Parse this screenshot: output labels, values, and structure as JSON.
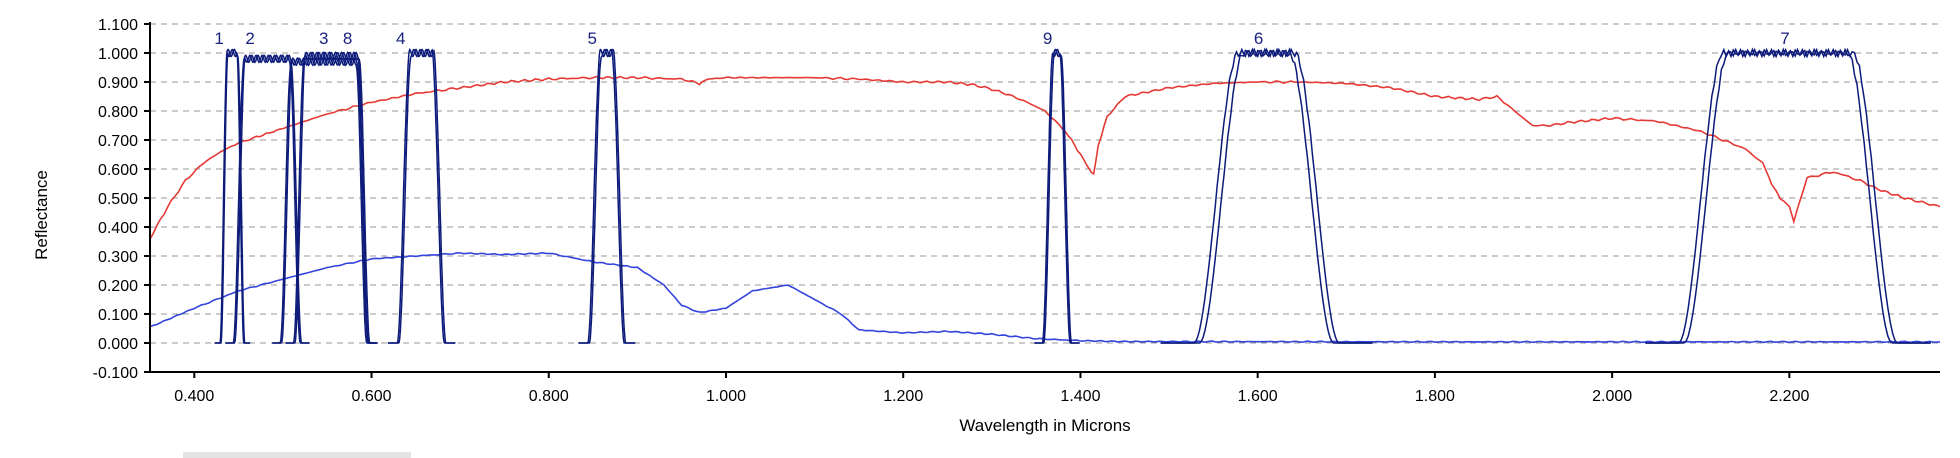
{
  "chart_data": {
    "type": "line",
    "xlabel": "Wavelength in Microns",
    "ylabel": "Reflectance",
    "xlim": [
      0.35,
      2.37
    ],
    "ylim": [
      -0.1,
      1.1
    ],
    "x_ticks": [
      0.4,
      0.6,
      0.8,
      1.0,
      1.2,
      1.4,
      1.6,
      1.8,
      2.0,
      2.2
    ],
    "x_tick_labels": [
      "0.400",
      "0.600",
      "0.800",
      "1.000",
      "1.200",
      "1.400",
      "1.600",
      "1.800",
      "2.000",
      "2.200"
    ],
    "y_ticks": [
      -0.1,
      0.0,
      0.1,
      0.2,
      0.3,
      0.4,
      0.5,
      0.6,
      0.7,
      0.8,
      0.9,
      1.0,
      1.1
    ],
    "y_tick_labels": [
      "-0.100",
      "0.000",
      "0.100",
      "0.200",
      "0.300",
      "0.400",
      "0.500",
      "0.600",
      "0.700",
      "0.800",
      "0.900",
      "1.000",
      "1.100"
    ],
    "grid": "horizontal-dashed",
    "colors": {
      "vegetation": "#e53935",
      "water": "#3344dd",
      "bands": "#0d1b7a"
    },
    "series": [
      {
        "style": "red",
        "x": [
          0.35,
          0.37,
          0.39,
          0.41,
          0.43,
          0.45,
          0.47,
          0.5,
          0.55,
          0.6,
          0.65,
          0.7,
          0.75,
          0.8,
          0.85,
          0.9,
          0.95,
          0.97,
          0.98,
          1.0,
          1.05,
          1.1,
          1.15,
          1.2,
          1.25,
          1.28,
          1.3,
          1.32,
          1.34,
          1.36,
          1.38,
          1.39,
          1.4,
          1.41,
          1.415,
          1.42,
          1.43,
          1.45,
          1.5,
          1.55,
          1.6,
          1.65,
          1.7,
          1.75,
          1.8,
          1.85,
          1.87,
          1.89,
          1.91,
          1.93,
          1.95,
          2.0,
          2.05,
          2.1,
          2.15,
          2.17,
          2.18,
          2.19,
          2.2,
          2.205,
          2.22,
          2.25,
          2.28,
          2.3,
          2.33,
          2.37
        ],
        "y": [
          0.36,
          0.47,
          0.56,
          0.62,
          0.66,
          0.69,
          0.71,
          0.74,
          0.79,
          0.83,
          0.86,
          0.88,
          0.9,
          0.91,
          0.915,
          0.915,
          0.91,
          0.895,
          0.91,
          0.915,
          0.915,
          0.915,
          0.91,
          0.9,
          0.9,
          0.89,
          0.875,
          0.855,
          0.83,
          0.8,
          0.74,
          0.7,
          0.65,
          0.6,
          0.58,
          0.68,
          0.78,
          0.85,
          0.88,
          0.895,
          0.9,
          0.9,
          0.895,
          0.88,
          0.85,
          0.84,
          0.85,
          0.8,
          0.75,
          0.75,
          0.76,
          0.775,
          0.765,
          0.73,
          0.67,
          0.62,
          0.55,
          0.5,
          0.47,
          0.42,
          0.57,
          0.59,
          0.56,
          0.53,
          0.5,
          0.47
        ]
      },
      {
        "style": "blue",
        "x": [
          0.35,
          0.4,
          0.45,
          0.5,
          0.55,
          0.6,
          0.65,
          0.7,
          0.75,
          0.8,
          0.85,
          0.9,
          0.93,
          0.95,
          0.97,
          1.0,
          1.03,
          1.07,
          1.1,
          1.13,
          1.15,
          1.2,
          1.25,
          1.3,
          1.35,
          1.4,
          1.45,
          1.5,
          1.8,
          2.0,
          2.37
        ],
        "y": [
          0.055,
          0.12,
          0.18,
          0.22,
          0.26,
          0.29,
          0.3,
          0.31,
          0.305,
          0.31,
          0.28,
          0.26,
          0.2,
          0.13,
          0.105,
          0.12,
          0.18,
          0.2,
          0.15,
          0.1,
          0.045,
          0.035,
          0.04,
          0.03,
          0.015,
          0.008,
          0.005,
          0.005,
          0.004,
          0.004,
          0.004
        ]
      }
    ],
    "bands": [
      {
        "label": "1",
        "label_x": 0.428,
        "left": 0.433,
        "right": 0.453,
        "rise": 0.004,
        "top": 1.0
      },
      {
        "label": "2",
        "label_x": 0.463,
        "left": 0.45,
        "right": 0.515,
        "rise": 0.006,
        "top": 0.98
      },
      {
        "label": "3",
        "label_x": 0.546,
        "left": 0.518,
        "right": 0.592,
        "rise": 0.006,
        "top": 0.99
      },
      {
        "label": "8",
        "label_x": 0.573,
        "left": 0.503,
        "right": 0.59,
        "rise": 0.006,
        "top": 0.97
      },
      {
        "label": "4",
        "label_x": 0.633,
        "left": 0.636,
        "right": 0.677,
        "rise": 0.007,
        "top": 1.0
      },
      {
        "label": "5",
        "label_x": 0.849,
        "left": 0.851,
        "right": 0.88,
        "rise": 0.007,
        "top": 1.0
      },
      {
        "label": "9",
        "label_x": 1.363,
        "left": 1.363,
        "right": 1.384,
        "rise": 0.006,
        "top": 1.0
      },
      {
        "label": "6",
        "label_x": 1.601,
        "left": 1.553,
        "right": 1.667,
        "rise": 0.025,
        "top": 1.0
      },
      {
        "label": "7",
        "label_x": 2.195,
        "left": 2.1,
        "right": 2.297,
        "rise": 0.025,
        "top": 1.0
      }
    ]
  }
}
